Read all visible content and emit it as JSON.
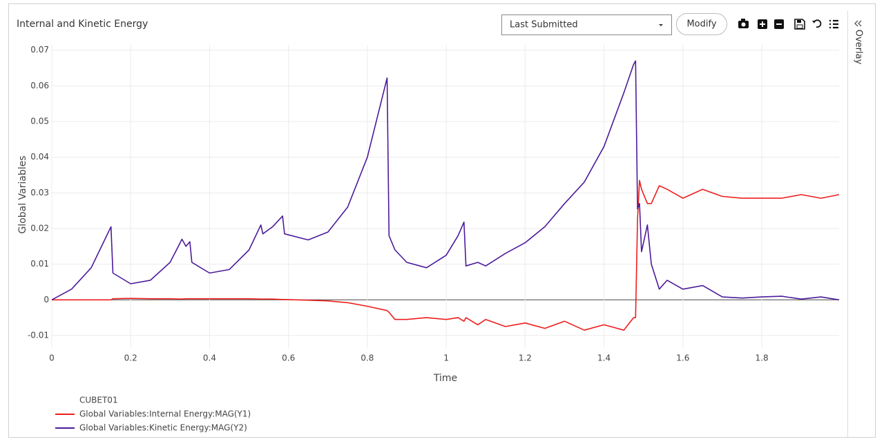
{
  "toolbar": {
    "dropdown": "Last Submitted",
    "button": "Modify"
  },
  "sidebar": {
    "label": "Overlay"
  },
  "chart_data": {
    "type": "line",
    "title": "Internal and Kinetic Energy",
    "x_label": "Time",
    "y_label": "Global Variables",
    "legend_title": "CUBET01",
    "x": [
      0,
      0.05,
      0.1,
      0.15,
      0.155,
      0.2,
      0.25,
      0.3,
      0.33,
      0.34,
      0.35,
      0.355,
      0.4,
      0.45,
      0.5,
      0.53,
      0.535,
      0.56,
      0.585,
      0.59,
      0.65,
      0.7,
      0.75,
      0.8,
      0.85,
      0.855,
      0.87,
      0.9,
      0.95,
      1.0,
      1.03,
      1.045,
      1.05,
      1.08,
      1.1,
      1.15,
      1.2,
      1.25,
      1.3,
      1.35,
      1.4,
      1.45,
      1.475,
      1.48,
      1.485,
      1.49,
      1.495,
      1.51,
      1.52,
      1.54,
      1.56,
      1.6,
      1.65,
      1.7,
      1.75,
      1.8,
      1.85,
      1.9,
      1.95,
      1.996
    ],
    "series": [
      {
        "name": "Global Variables:Internal Energy:MAG(Y1)",
        "color": "#ee1c1c",
        "values": [
          0,
          0,
          0,
          0,
          0.0003,
          0.0004,
          0.0003,
          0.0003,
          0.0002,
          0.0003,
          0.0003,
          0.0003,
          0.0003,
          0.0003,
          0.0003,
          0.0002,
          0.0002,
          0.0002,
          0.0001,
          0.0001,
          -0.0001,
          -0.0003,
          -0.0008,
          -0.0018,
          -0.003,
          -0.0035,
          -0.0055,
          -0.0055,
          -0.005,
          -0.0055,
          -0.005,
          -0.006,
          -0.005,
          -0.007,
          -0.0055,
          -0.0075,
          -0.0065,
          -0.008,
          -0.006,
          -0.0085,
          -0.007,
          -0.0085,
          -0.005,
          -0.005,
          0.0225,
          0.0335,
          0.031,
          0.027,
          0.027,
          0.032,
          0.031,
          0.0285,
          0.031,
          0.029,
          0.0285,
          0.0285,
          0.0285,
          0.0295,
          0.0285,
          0.0295
        ]
      },
      {
        "name": "Global Variables:Kinetic Energy:MAG(Y2)",
        "color": "#4b1a9a",
        "values": [
          0,
          0.003,
          0.009,
          0.0205,
          0.0075,
          0.0045,
          0.0055,
          0.0105,
          0.017,
          0.015,
          0.0163,
          0.0105,
          0.0075,
          0.0085,
          0.014,
          0.021,
          0.0185,
          0.0205,
          0.0235,
          0.0185,
          0.0168,
          0.019,
          0.026,
          0.04,
          0.0622,
          0.018,
          0.014,
          0.0105,
          0.009,
          0.0125,
          0.018,
          0.0218,
          0.0095,
          0.0105,
          0.0095,
          0.013,
          0.016,
          0.0205,
          0.027,
          0.033,
          0.043,
          0.058,
          0.066,
          0.067,
          0.0255,
          0.027,
          0.0135,
          0.021,
          0.01,
          0.003,
          0.0055,
          0.003,
          0.004,
          0.0008,
          0.0005,
          0.0008,
          0.001,
          0.0002,
          0.0008,
          0
        ]
      }
    ],
    "xlim": [
      0,
      1.996
    ],
    "xticks": [
      0,
      0.2,
      0.4,
      0.6,
      0.8,
      1,
      1.2,
      1.4,
      1.6,
      1.8
    ],
    "ylim": [
      -0.0135,
      0.0715
    ],
    "yticks": [
      -0.01,
      0,
      0.01,
      0.02,
      0.03,
      0.04,
      0.05,
      0.06,
      0.07
    ],
    "grid": true
  }
}
